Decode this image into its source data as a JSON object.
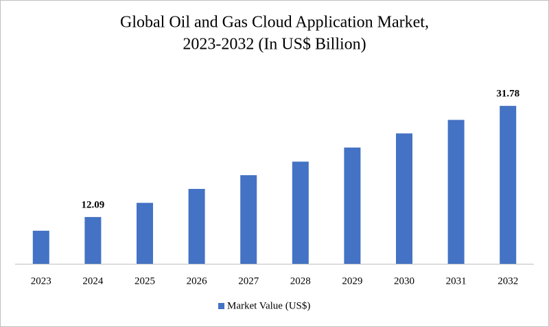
{
  "chart_data": {
    "type": "bar",
    "title": [
      "Global Oil and Gas Cloud Application Market,",
      "2023-2032 (In US$ Billion)"
    ],
    "categories": [
      "2023",
      "2024",
      "2025",
      "2026",
      "2027",
      "2028",
      "2029",
      "2030",
      "2031",
      "2032"
    ],
    "series": [
      {
        "name": "Market Value (US$)",
        "color": "#4472c4",
        "values": [
          9.66,
          12.09,
          14.6,
          17.07,
          19.5,
          21.9,
          24.4,
          26.9,
          29.3,
          31.78
        ],
        "value_labels": [
          null,
          "12.09",
          null,
          null,
          null,
          null,
          null,
          null,
          null,
          "31.78"
        ]
      }
    ],
    "ylim": [
      3.8,
      33.5
    ],
    "legend": "bottom"
  }
}
